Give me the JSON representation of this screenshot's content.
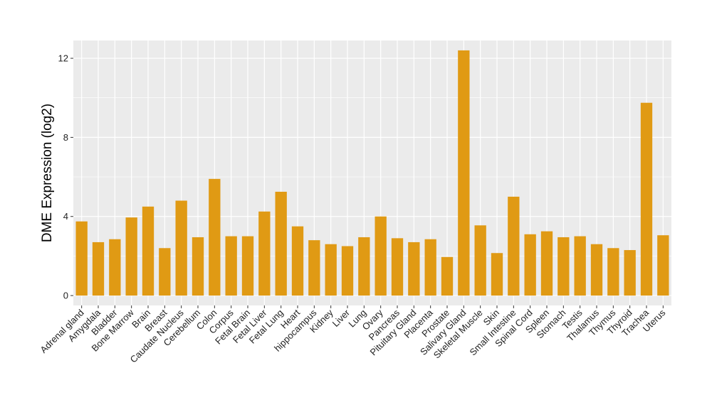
{
  "chart_data": {
    "type": "bar",
    "title": "",
    "xlabel": "",
    "ylabel": "DME Expression (log2)",
    "ylim": [
      -0.5,
      12.9
    ],
    "yticks": [
      0,
      4,
      8,
      12
    ],
    "grid": true,
    "bar_color": "#E09A14",
    "panel_background": "#EBEBEB",
    "categories": [
      "Adrenal gland",
      "Amygdala",
      "Bladder",
      "Bone Marrow",
      "Brain",
      "Breast",
      "Caudate Nucleus",
      "Cerebellum",
      "Colon",
      "Corpus",
      "Fetal Brain",
      "Fetal Liver",
      "Fetal Lung",
      "Heart",
      "hippocampus",
      "Kidney",
      "Liver",
      "Lung",
      "Ovary",
      "Pancreas",
      "Pituitary Gland",
      "Placenta",
      "Prostate",
      "Salivary Gland",
      "Skeletal Muscle",
      "Skin",
      "Small Intestine",
      "Spinal Cord",
      "Spleen",
      "Stomach",
      "Testis",
      "Thalamus",
      "Thymus",
      "Thyroid",
      "Trachea",
      "Uterus"
    ],
    "values": [
      3.75,
      2.7,
      2.85,
      3.95,
      4.5,
      2.4,
      4.8,
      2.95,
      5.9,
      3.0,
      3.0,
      4.25,
      5.25,
      3.5,
      2.8,
      2.6,
      2.5,
      2.95,
      4.0,
      2.9,
      2.7,
      2.85,
      1.95,
      12.4,
      3.55,
      2.15,
      5.0,
      3.1,
      3.25,
      2.95,
      3.0,
      2.6,
      2.4,
      2.3,
      9.75,
      3.05
    ]
  }
}
